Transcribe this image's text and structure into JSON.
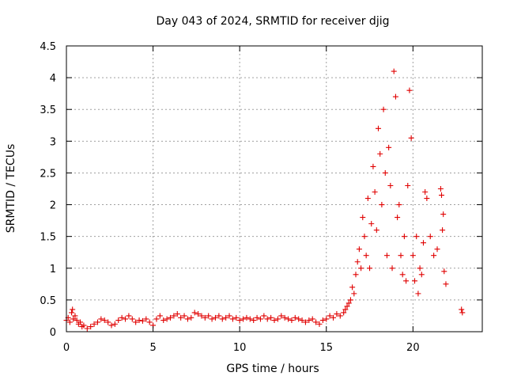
{
  "chart_data": {
    "type": "scatter",
    "title": "Day 043 of 2024, SRMTID for receiver djig",
    "xlabel": "GPS time / hours",
    "ylabel": "SRMTID / TECUs",
    "xlim": [
      0,
      24
    ],
    "ylim": [
      0,
      4.5
    ],
    "x_ticks": [
      0,
      5,
      10,
      15,
      20
    ],
    "x_tick_labels": [
      "0",
      "5",
      "10",
      "15",
      "20"
    ],
    "y_ticks": [
      0,
      0.5,
      1,
      1.5,
      2,
      2.5,
      3,
      3.5,
      4,
      4.5
    ],
    "y_tick_labels": [
      "0",
      "0.5",
      "1",
      "1.5",
      "2",
      "2.5",
      "3",
      "3.5",
      "4",
      "4.5"
    ],
    "grid": true,
    "marker": "plus",
    "color": "#e00000",
    "series": [
      {
        "name": "SRMTID",
        "points": [
          [
            0.0,
            0.18
          ],
          [
            0.1,
            0.22
          ],
          [
            0.2,
            0.15
          ],
          [
            0.3,
            0.3
          ],
          [
            0.35,
            0.35
          ],
          [
            0.4,
            0.2
          ],
          [
            0.5,
            0.25
          ],
          [
            0.6,
            0.18
          ],
          [
            0.7,
            0.12
          ],
          [
            0.8,
            0.15
          ],
          [
            0.9,
            0.08
          ],
          [
            1.0,
            0.1
          ],
          [
            1.2,
            0.05
          ],
          [
            1.4,
            0.08
          ],
          [
            1.6,
            0.12
          ],
          [
            1.8,
            0.15
          ],
          [
            2.0,
            0.2
          ],
          [
            2.2,
            0.18
          ],
          [
            2.4,
            0.15
          ],
          [
            2.6,
            0.1
          ],
          [
            2.8,
            0.12
          ],
          [
            3.0,
            0.18
          ],
          [
            3.2,
            0.22
          ],
          [
            3.4,
            0.2
          ],
          [
            3.6,
            0.25
          ],
          [
            3.8,
            0.2
          ],
          [
            4.0,
            0.15
          ],
          [
            4.2,
            0.18
          ],
          [
            4.4,
            0.17
          ],
          [
            4.6,
            0.2
          ],
          [
            4.8,
            0.15
          ],
          [
            5.0,
            0.1
          ],
          [
            5.2,
            0.2
          ],
          [
            5.4,
            0.25
          ],
          [
            5.6,
            0.18
          ],
          [
            5.8,
            0.2
          ],
          [
            6.0,
            0.22
          ],
          [
            6.2,
            0.25
          ],
          [
            6.4,
            0.28
          ],
          [
            6.6,
            0.22
          ],
          [
            6.8,
            0.25
          ],
          [
            7.0,
            0.2
          ],
          [
            7.2,
            0.22
          ],
          [
            7.4,
            0.3
          ],
          [
            7.6,
            0.28
          ],
          [
            7.8,
            0.25
          ],
          [
            8.0,
            0.22
          ],
          [
            8.2,
            0.25
          ],
          [
            8.4,
            0.2
          ],
          [
            8.6,
            0.22
          ],
          [
            8.8,
            0.25
          ],
          [
            9.0,
            0.2
          ],
          [
            9.2,
            0.22
          ],
          [
            9.4,
            0.25
          ],
          [
            9.6,
            0.2
          ],
          [
            9.8,
            0.22
          ],
          [
            10.0,
            0.18
          ],
          [
            10.2,
            0.2
          ],
          [
            10.4,
            0.22
          ],
          [
            10.6,
            0.2
          ],
          [
            10.8,
            0.18
          ],
          [
            11.0,
            0.22
          ],
          [
            11.2,
            0.2
          ],
          [
            11.4,
            0.25
          ],
          [
            11.6,
            0.2
          ],
          [
            11.8,
            0.22
          ],
          [
            12.0,
            0.18
          ],
          [
            12.2,
            0.2
          ],
          [
            12.4,
            0.25
          ],
          [
            12.6,
            0.22
          ],
          [
            12.8,
            0.2
          ],
          [
            13.0,
            0.18
          ],
          [
            13.2,
            0.22
          ],
          [
            13.4,
            0.2
          ],
          [
            13.6,
            0.18
          ],
          [
            13.8,
            0.15
          ],
          [
            14.0,
            0.18
          ],
          [
            14.2,
            0.2
          ],
          [
            14.4,
            0.15
          ],
          [
            14.6,
            0.12
          ],
          [
            14.8,
            0.18
          ],
          [
            15.0,
            0.2
          ],
          [
            15.2,
            0.25
          ],
          [
            15.4,
            0.22
          ],
          [
            15.6,
            0.28
          ],
          [
            15.8,
            0.25
          ],
          [
            16.0,
            0.3
          ],
          [
            16.1,
            0.35
          ],
          [
            16.2,
            0.4
          ],
          [
            16.3,
            0.45
          ],
          [
            16.4,
            0.5
          ],
          [
            16.5,
            0.7
          ],
          [
            16.6,
            0.6
          ],
          [
            16.7,
            0.9
          ],
          [
            16.8,
            1.1
          ],
          [
            16.9,
            1.3
          ],
          [
            17.0,
            1.0
          ],
          [
            17.1,
            1.8
          ],
          [
            17.2,
            1.5
          ],
          [
            17.3,
            1.2
          ],
          [
            17.4,
            2.1
          ],
          [
            17.5,
            1.0
          ],
          [
            17.6,
            1.7
          ],
          [
            17.7,
            2.6
          ],
          [
            17.8,
            2.2
          ],
          [
            17.9,
            1.6
          ],
          [
            18.0,
            3.2
          ],
          [
            18.1,
            2.8
          ],
          [
            18.2,
            2.0
          ],
          [
            18.3,
            3.5
          ],
          [
            18.4,
            2.5
          ],
          [
            18.5,
            1.2
          ],
          [
            18.6,
            2.9
          ],
          [
            18.7,
            2.3
          ],
          [
            18.8,
            1.0
          ],
          [
            18.9,
            4.1
          ],
          [
            19.0,
            3.7
          ],
          [
            19.1,
            1.8
          ],
          [
            19.2,
            2.0
          ],
          [
            19.3,
            1.2
          ],
          [
            19.4,
            0.9
          ],
          [
            19.5,
            1.5
          ],
          [
            19.6,
            0.8
          ],
          [
            19.7,
            2.3
          ],
          [
            19.8,
            3.8
          ],
          [
            19.9,
            3.05
          ],
          [
            20.0,
            1.2
          ],
          [
            20.1,
            0.8
          ],
          [
            20.2,
            1.5
          ],
          [
            20.3,
            0.6
          ],
          [
            20.4,
            1.0
          ],
          [
            20.5,
            0.9
          ],
          [
            20.6,
            1.4
          ],
          [
            20.7,
            2.2
          ],
          [
            20.8,
            2.1
          ],
          [
            21.0,
            1.5
          ],
          [
            21.2,
            1.2
          ],
          [
            21.4,
            1.3
          ],
          [
            21.6,
            2.25
          ],
          [
            21.65,
            2.15
          ],
          [
            21.7,
            1.6
          ],
          [
            21.75,
            1.85
          ],
          [
            21.8,
            0.95
          ],
          [
            21.9,
            0.75
          ],
          [
            22.8,
            0.35
          ],
          [
            22.85,
            0.3
          ]
        ]
      }
    ]
  }
}
